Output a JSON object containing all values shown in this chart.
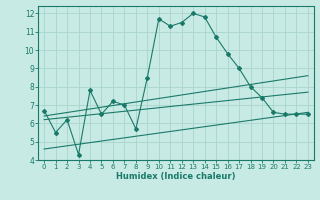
{
  "xlabel": "Humidex (Indice chaleur)",
  "bg_color": "#c8eae4",
  "grid_color": "#a8d4cc",
  "line_color": "#1a7a6a",
  "xlim": [
    -0.5,
    23.5
  ],
  "ylim": [
    4,
    12.4
  ],
  "xticks": [
    0,
    1,
    2,
    3,
    4,
    5,
    6,
    7,
    8,
    9,
    10,
    11,
    12,
    13,
    14,
    15,
    16,
    17,
    18,
    19,
    20,
    21,
    22,
    23
  ],
  "yticks": [
    4,
    5,
    6,
    7,
    8,
    9,
    10,
    11,
    12
  ],
  "main_line_x": [
    0,
    1,
    2,
    3,
    4,
    5,
    6,
    7,
    8,
    9,
    10,
    11,
    12,
    13,
    14,
    15,
    16,
    17,
    18,
    19,
    20,
    21,
    22,
    23
  ],
  "main_line_y": [
    6.7,
    5.5,
    6.2,
    4.3,
    7.8,
    6.5,
    7.2,
    7.0,
    5.7,
    8.5,
    11.7,
    11.3,
    11.5,
    12.0,
    11.8,
    10.7,
    9.8,
    9.0,
    8.0,
    7.4,
    6.6,
    6.5,
    6.5,
    6.5
  ],
  "upper_line_x": [
    0,
    23
  ],
  "upper_line_y": [
    6.4,
    8.6
  ],
  "middle_line_x": [
    0,
    23
  ],
  "middle_line_y": [
    6.2,
    7.7
  ],
  "lower_line_x": [
    0,
    23
  ],
  "lower_line_y": [
    4.6,
    6.6
  ]
}
